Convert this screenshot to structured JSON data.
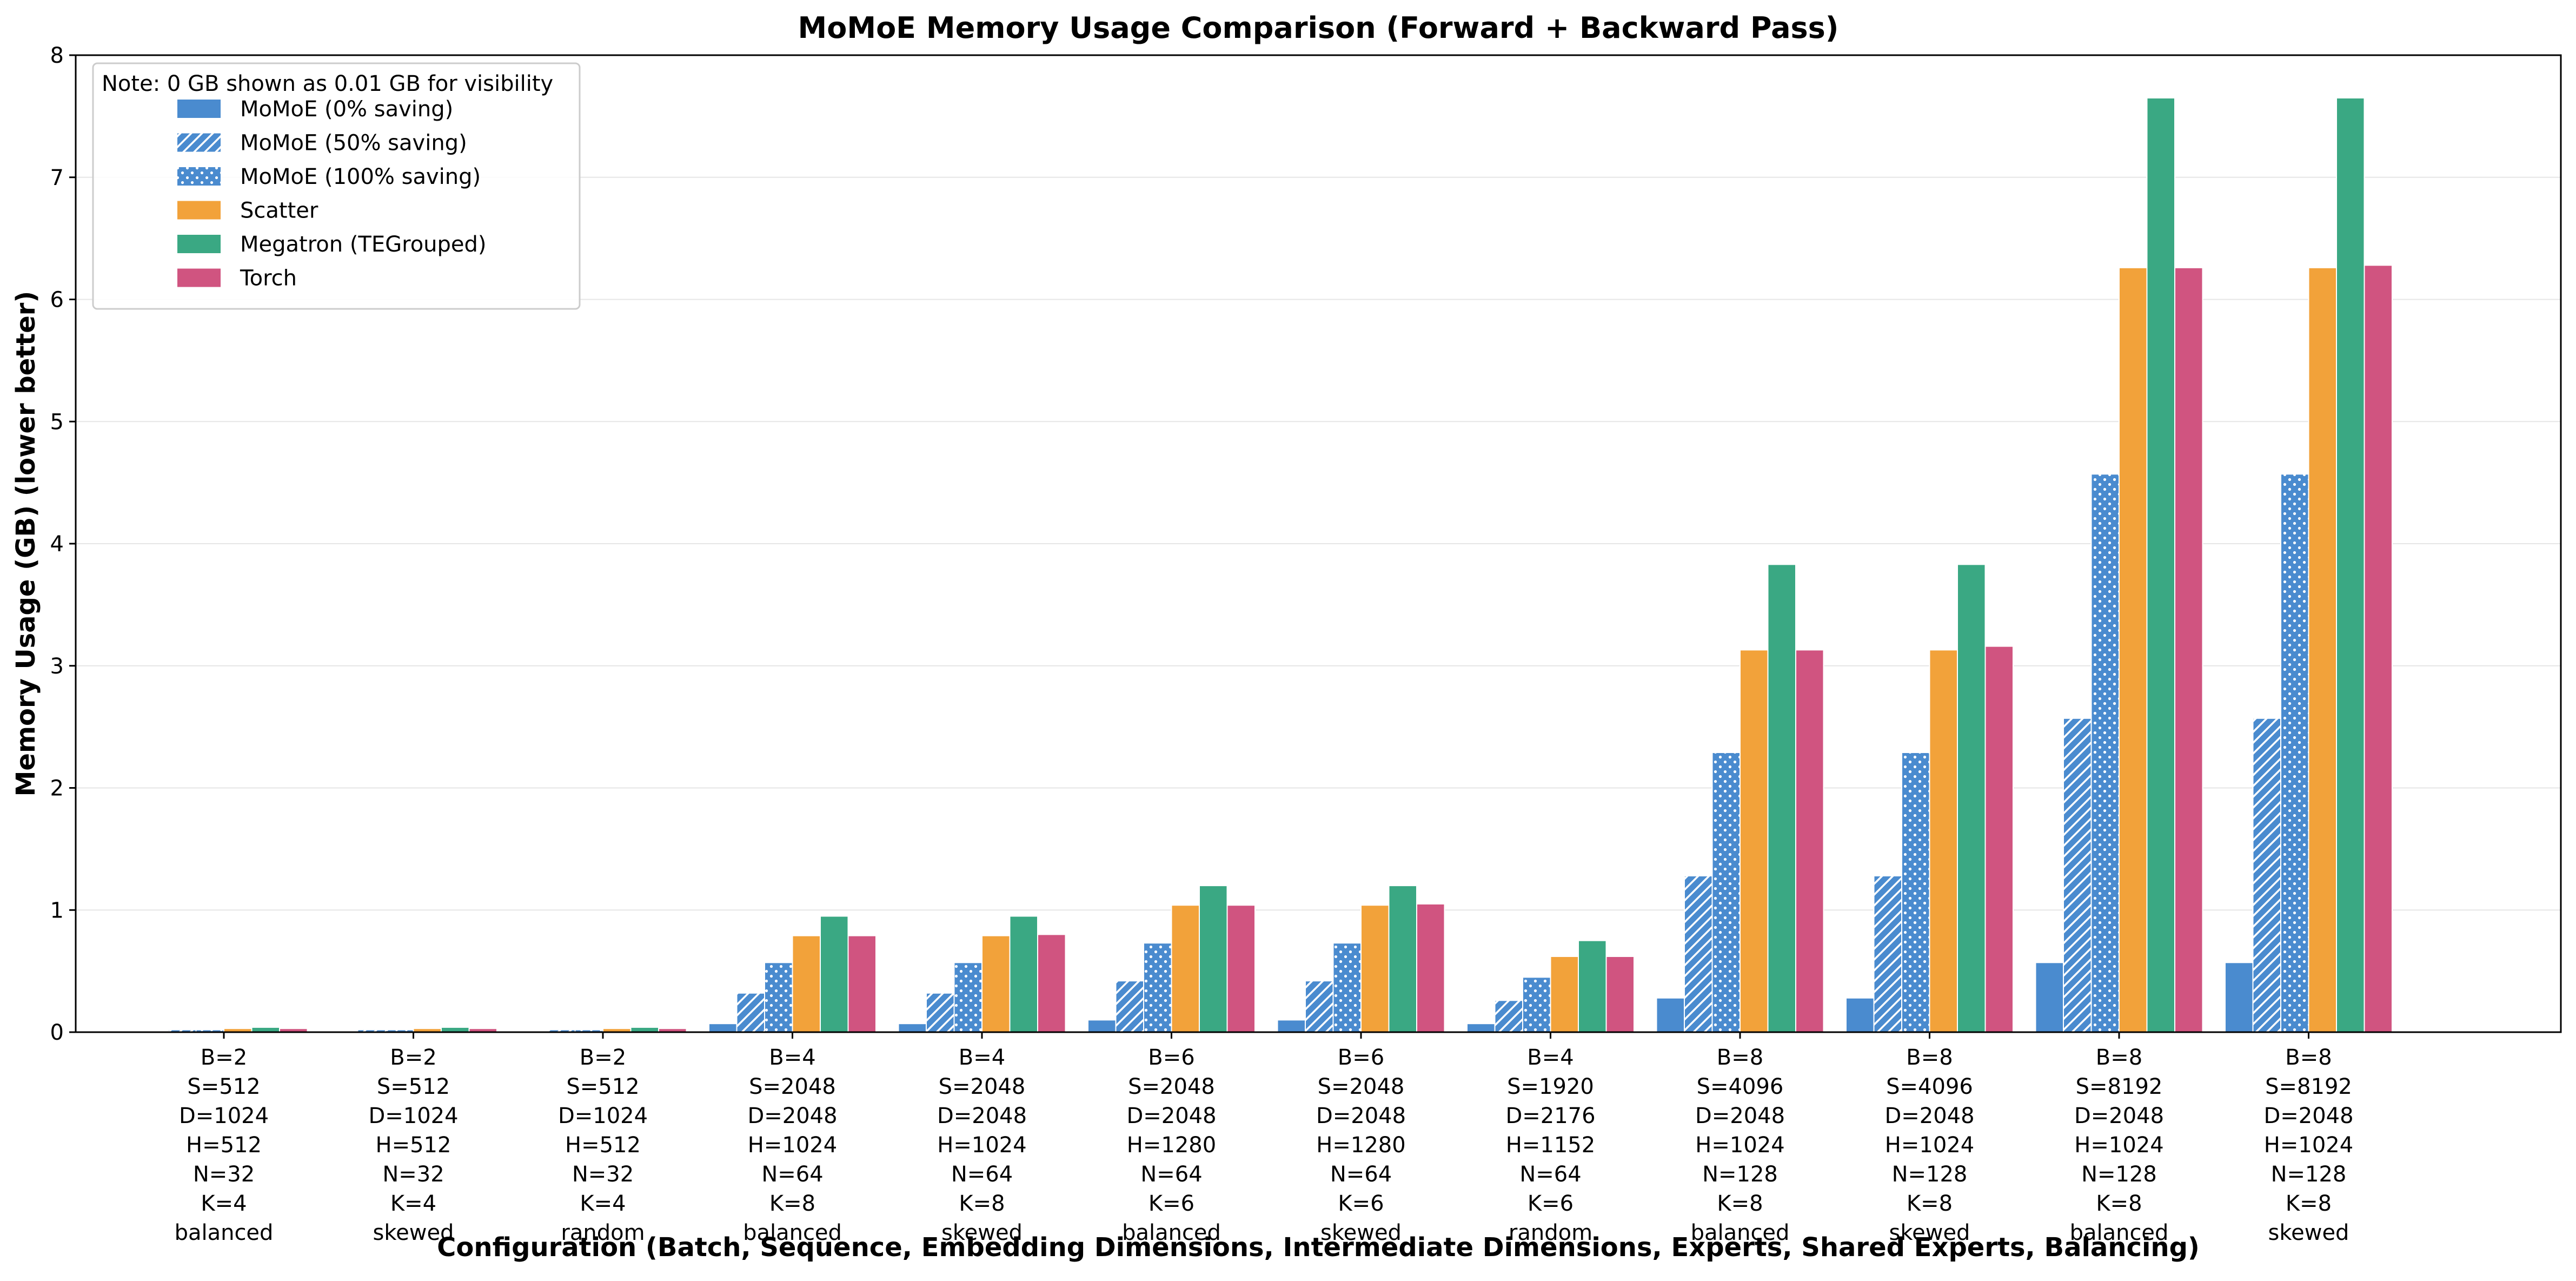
{
  "chart_data": {
    "type": "bar",
    "title": "MoMoE Memory Usage Comparison (Forward + Backward Pass)",
    "xlabel": "Configuration (Batch, Sequence, Embedding Dimensions, Intermediate Dimensions, Experts, Shared Experts, Balancing)",
    "ylabel": "Memory Usage (GB) (lower better)",
    "ylim": [
      0,
      8
    ],
    "yticks": [
      0,
      1,
      2,
      3,
      4,
      5,
      6,
      7,
      8
    ],
    "grid": "horizontal",
    "legend_position": "top-left",
    "legend_note": "Note: 0 GB shown as 0.01 GB for visibility",
    "categories": [
      [
        "B=2",
        "S=512",
        "D=1024",
        "H=512",
        "N=32",
        "K=4",
        "balanced"
      ],
      [
        "B=2",
        "S=512",
        "D=1024",
        "H=512",
        "N=32",
        "K=4",
        "skewed"
      ],
      [
        "B=2",
        "S=512",
        "D=1024",
        "H=512",
        "N=32",
        "K=4",
        "random"
      ],
      [
        "B=4",
        "S=2048",
        "D=2048",
        "H=1024",
        "N=64",
        "K=8",
        "balanced"
      ],
      [
        "B=4",
        "S=2048",
        "D=2048",
        "H=1024",
        "N=64",
        "K=8",
        "skewed"
      ],
      [
        "B=6",
        "S=2048",
        "D=2048",
        "H=1280",
        "N=64",
        "K=6",
        "balanced"
      ],
      [
        "B=6",
        "S=2048",
        "D=2048",
        "H=1280",
        "N=64",
        "K=6",
        "skewed"
      ],
      [
        "B=4",
        "S=1920",
        "D=2176",
        "H=1152",
        "N=64",
        "K=6",
        "random"
      ],
      [
        "B=8",
        "S=4096",
        "D=2048",
        "H=1024",
        "N=128",
        "K=8",
        "balanced"
      ],
      [
        "B=8",
        "S=4096",
        "D=2048",
        "H=1024",
        "N=128",
        "K=8",
        "skewed"
      ],
      [
        "B=8",
        "S=8192",
        "D=2048",
        "H=1024",
        "N=128",
        "K=8",
        "balanced"
      ],
      [
        "B=8",
        "S=8192",
        "D=2048",
        "H=1024",
        "N=128",
        "K=8",
        "skewed"
      ]
    ],
    "series": [
      {
        "name": "MoMoE (0% saving)",
        "color": "#4a8bcf",
        "pattern": "solid",
        "values": [
          0.01,
          0.01,
          0.01,
          0.07,
          0.07,
          0.1,
          0.1,
          0.07,
          0.28,
          0.28,
          0.57,
          0.57
        ]
      },
      {
        "name": "MoMoE (50% saving)",
        "color": "#4a8bcf",
        "pattern": "hatch",
        "values": [
          0.02,
          0.02,
          0.02,
          0.32,
          0.32,
          0.42,
          0.42,
          0.26,
          1.28,
          1.28,
          2.57,
          2.57
        ]
      },
      {
        "name": "MoMoE (100% saving)",
        "color": "#4a8bcf",
        "pattern": "dots",
        "values": [
          0.02,
          0.02,
          0.02,
          0.57,
          0.57,
          0.73,
          0.73,
          0.45,
          2.29,
          2.29,
          4.57,
          4.57
        ]
      },
      {
        "name": "Scatter",
        "color": "#f2a23a",
        "pattern": "solid",
        "values": [
          0.03,
          0.03,
          0.03,
          0.79,
          0.79,
          1.04,
          1.04,
          0.62,
          3.13,
          3.13,
          6.26,
          6.26
        ]
      },
      {
        "name": "Megatron (TEGrouped)",
        "color": "#3aa883",
        "pattern": "solid",
        "values": [
          0.04,
          0.04,
          0.04,
          0.95,
          0.95,
          1.2,
          1.2,
          0.75,
          3.83,
          3.83,
          7.65,
          7.65
        ]
      },
      {
        "name": "Torch",
        "color": "#d05480",
        "pattern": "solid",
        "values": [
          0.03,
          0.03,
          0.03,
          0.79,
          0.8,
          1.04,
          1.05,
          0.62,
          3.13,
          3.16,
          6.26,
          6.28
        ]
      }
    ]
  }
}
